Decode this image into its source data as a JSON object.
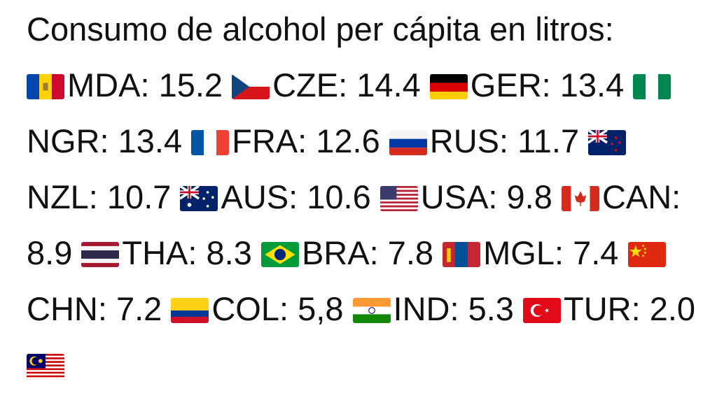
{
  "title": "Consumo de alcohol per cápita en litros:",
  "entries": [
    {
      "label": "MDA:",
      "value": "15.2"
    },
    {
      "label": "CZE:",
      "value": "14.4"
    },
    {
      "label": "GER:",
      "value": "13.4"
    },
    {
      "label": "NGR:",
      "value": "13.4"
    },
    {
      "label": "FRA:",
      "value": "12.6"
    },
    {
      "label": "RUS:",
      "value": "11.7"
    },
    {
      "label": "NZL:",
      "value": "10.7"
    },
    {
      "label": "AUS:",
      "value": "10.6"
    },
    {
      "label": "USA:",
      "value": "9.8"
    },
    {
      "label": "CAN:",
      "value": "8.9"
    },
    {
      "label": "THA:",
      "value": "8.3"
    },
    {
      "label": "BRA:",
      "value": "7.8"
    },
    {
      "label": "MGL:",
      "value": "7.4"
    },
    {
      "label": "CHN:",
      "value": "7.2"
    },
    {
      "label": "COL:",
      "value": "5,8"
    },
    {
      "label": "IND:",
      "value": "5.3"
    },
    {
      "label": "TUR:",
      "value": "2.0"
    }
  ]
}
